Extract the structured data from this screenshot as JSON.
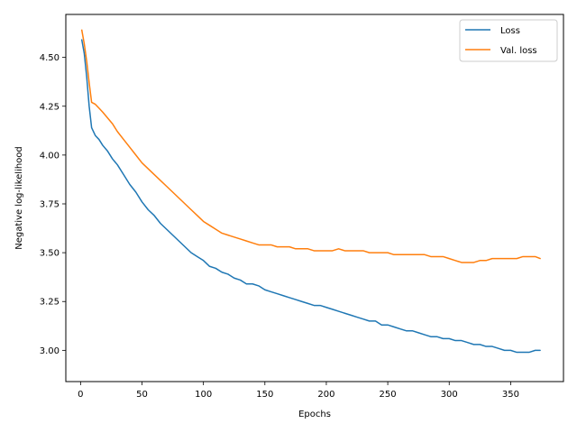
{
  "chart_data": {
    "type": "line",
    "title": "",
    "xlabel": "Epochs",
    "ylabel": "Negative log-likelihood",
    "xlim": [
      -12,
      393
    ],
    "ylim": [
      2.84,
      4.72
    ],
    "xticks": [
      0,
      50,
      100,
      150,
      200,
      250,
      300,
      350
    ],
    "yticks": [
      3.0,
      3.25,
      3.5,
      3.75,
      4.0,
      4.25,
      4.5
    ],
    "xtick_labels": [
      "0",
      "50",
      "100",
      "150",
      "200",
      "250",
      "300",
      "350"
    ],
    "ytick_labels": [
      "3.00",
      "3.25",
      "3.50",
      "3.75",
      "4.00",
      "4.25",
      "4.50"
    ],
    "grid": false,
    "legend": "top-right",
    "series": [
      {
        "name": "Loss",
        "color": "#1f77b4",
        "x": [
          1,
          3,
          5,
          7,
          9,
          12,
          15,
          18,
          22,
          26,
          30,
          35,
          40,
          45,
          50,
          55,
          60,
          65,
          70,
          75,
          80,
          85,
          90,
          95,
          100,
          105,
          110,
          115,
          120,
          125,
          130,
          135,
          140,
          145,
          150,
          155,
          160,
          165,
          170,
          175,
          180,
          185,
          190,
          195,
          200,
          205,
          210,
          215,
          220,
          225,
          230,
          235,
          240,
          245,
          250,
          255,
          260,
          265,
          270,
          275,
          280,
          285,
          290,
          295,
          300,
          305,
          310,
          315,
          320,
          325,
          330,
          335,
          340,
          345,
          350,
          355,
          360,
          365,
          370,
          374
        ],
        "values": [
          4.59,
          4.52,
          4.4,
          4.25,
          4.14,
          4.1,
          4.08,
          4.05,
          4.02,
          3.98,
          3.95,
          3.9,
          3.85,
          3.81,
          3.76,
          3.72,
          3.69,
          3.65,
          3.62,
          3.59,
          3.56,
          3.53,
          3.5,
          3.48,
          3.46,
          3.43,
          3.42,
          3.4,
          3.39,
          3.37,
          3.36,
          3.34,
          3.34,
          3.33,
          3.31,
          3.3,
          3.29,
          3.28,
          3.27,
          3.26,
          3.25,
          3.24,
          3.23,
          3.23,
          3.22,
          3.21,
          3.2,
          3.19,
          3.18,
          3.17,
          3.16,
          3.15,
          3.15,
          3.13,
          3.13,
          3.12,
          3.11,
          3.1,
          3.1,
          3.09,
          3.08,
          3.07,
          3.07,
          3.06,
          3.06,
          3.05,
          3.05,
          3.04,
          3.03,
          3.03,
          3.02,
          3.02,
          3.01,
          3.0,
          3.0,
          2.99,
          2.99,
          2.99,
          3.0,
          3.0
        ]
      },
      {
        "name": "Val. loss",
        "color": "#ff7f0e",
        "x": [
          1,
          3,
          5,
          7,
          9,
          12,
          15,
          18,
          22,
          26,
          30,
          35,
          40,
          45,
          50,
          55,
          60,
          65,
          70,
          75,
          80,
          85,
          90,
          95,
          100,
          105,
          110,
          115,
          120,
          125,
          130,
          135,
          140,
          145,
          150,
          155,
          160,
          165,
          170,
          175,
          180,
          185,
          190,
          195,
          200,
          205,
          210,
          215,
          220,
          225,
          230,
          235,
          240,
          245,
          250,
          255,
          260,
          265,
          270,
          275,
          280,
          285,
          290,
          295,
          300,
          305,
          310,
          315,
          320,
          325,
          330,
          335,
          340,
          345,
          350,
          355,
          360,
          365,
          370,
          374
        ],
        "values": [
          4.64,
          4.57,
          4.48,
          4.37,
          4.27,
          4.26,
          4.24,
          4.22,
          4.19,
          4.16,
          4.12,
          4.08,
          4.04,
          4.0,
          3.96,
          3.93,
          3.9,
          3.87,
          3.84,
          3.81,
          3.78,
          3.75,
          3.72,
          3.69,
          3.66,
          3.64,
          3.62,
          3.6,
          3.59,
          3.58,
          3.57,
          3.56,
          3.55,
          3.54,
          3.54,
          3.54,
          3.53,
          3.53,
          3.53,
          3.52,
          3.52,
          3.52,
          3.51,
          3.51,
          3.51,
          3.51,
          3.52,
          3.51,
          3.51,
          3.51,
          3.51,
          3.5,
          3.5,
          3.5,
          3.5,
          3.49,
          3.49,
          3.49,
          3.49,
          3.49,
          3.49,
          3.48,
          3.48,
          3.48,
          3.47,
          3.46,
          3.45,
          3.45,
          3.45,
          3.46,
          3.46,
          3.47,
          3.47,
          3.47,
          3.47,
          3.47,
          3.48,
          3.48,
          3.48,
          3.47
        ]
      }
    ]
  }
}
